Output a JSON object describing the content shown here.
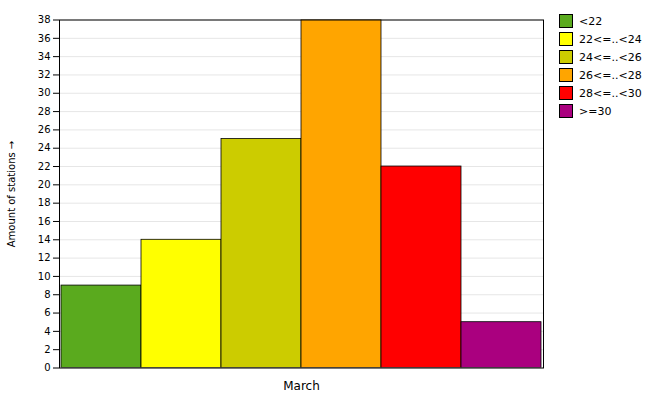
{
  "chart_data": {
    "type": "bar",
    "xlabel": "March",
    "ylabel": "Amount of stations",
    "categories": [
      "<22",
      "22<=..<24",
      "24<=..<26",
      "26<=..<28",
      "28<=..<30",
      ">=30"
    ],
    "values": [
      9,
      14,
      25,
      38,
      22,
      5
    ],
    "colors": [
      "#5aaa1e",
      "#ffff00",
      "#cccc00",
      "#ffa500",
      "#ff0000",
      "#aa007f"
    ],
    "ylim": [
      0,
      38
    ],
    "yticks": [
      0,
      2,
      4,
      6,
      8,
      10,
      12,
      14,
      16,
      18,
      20,
      22,
      24,
      26,
      28,
      30,
      32,
      34,
      36,
      38
    ],
    "grid": true,
    "legend": "upper right",
    "tick_labels": "y"
  }
}
